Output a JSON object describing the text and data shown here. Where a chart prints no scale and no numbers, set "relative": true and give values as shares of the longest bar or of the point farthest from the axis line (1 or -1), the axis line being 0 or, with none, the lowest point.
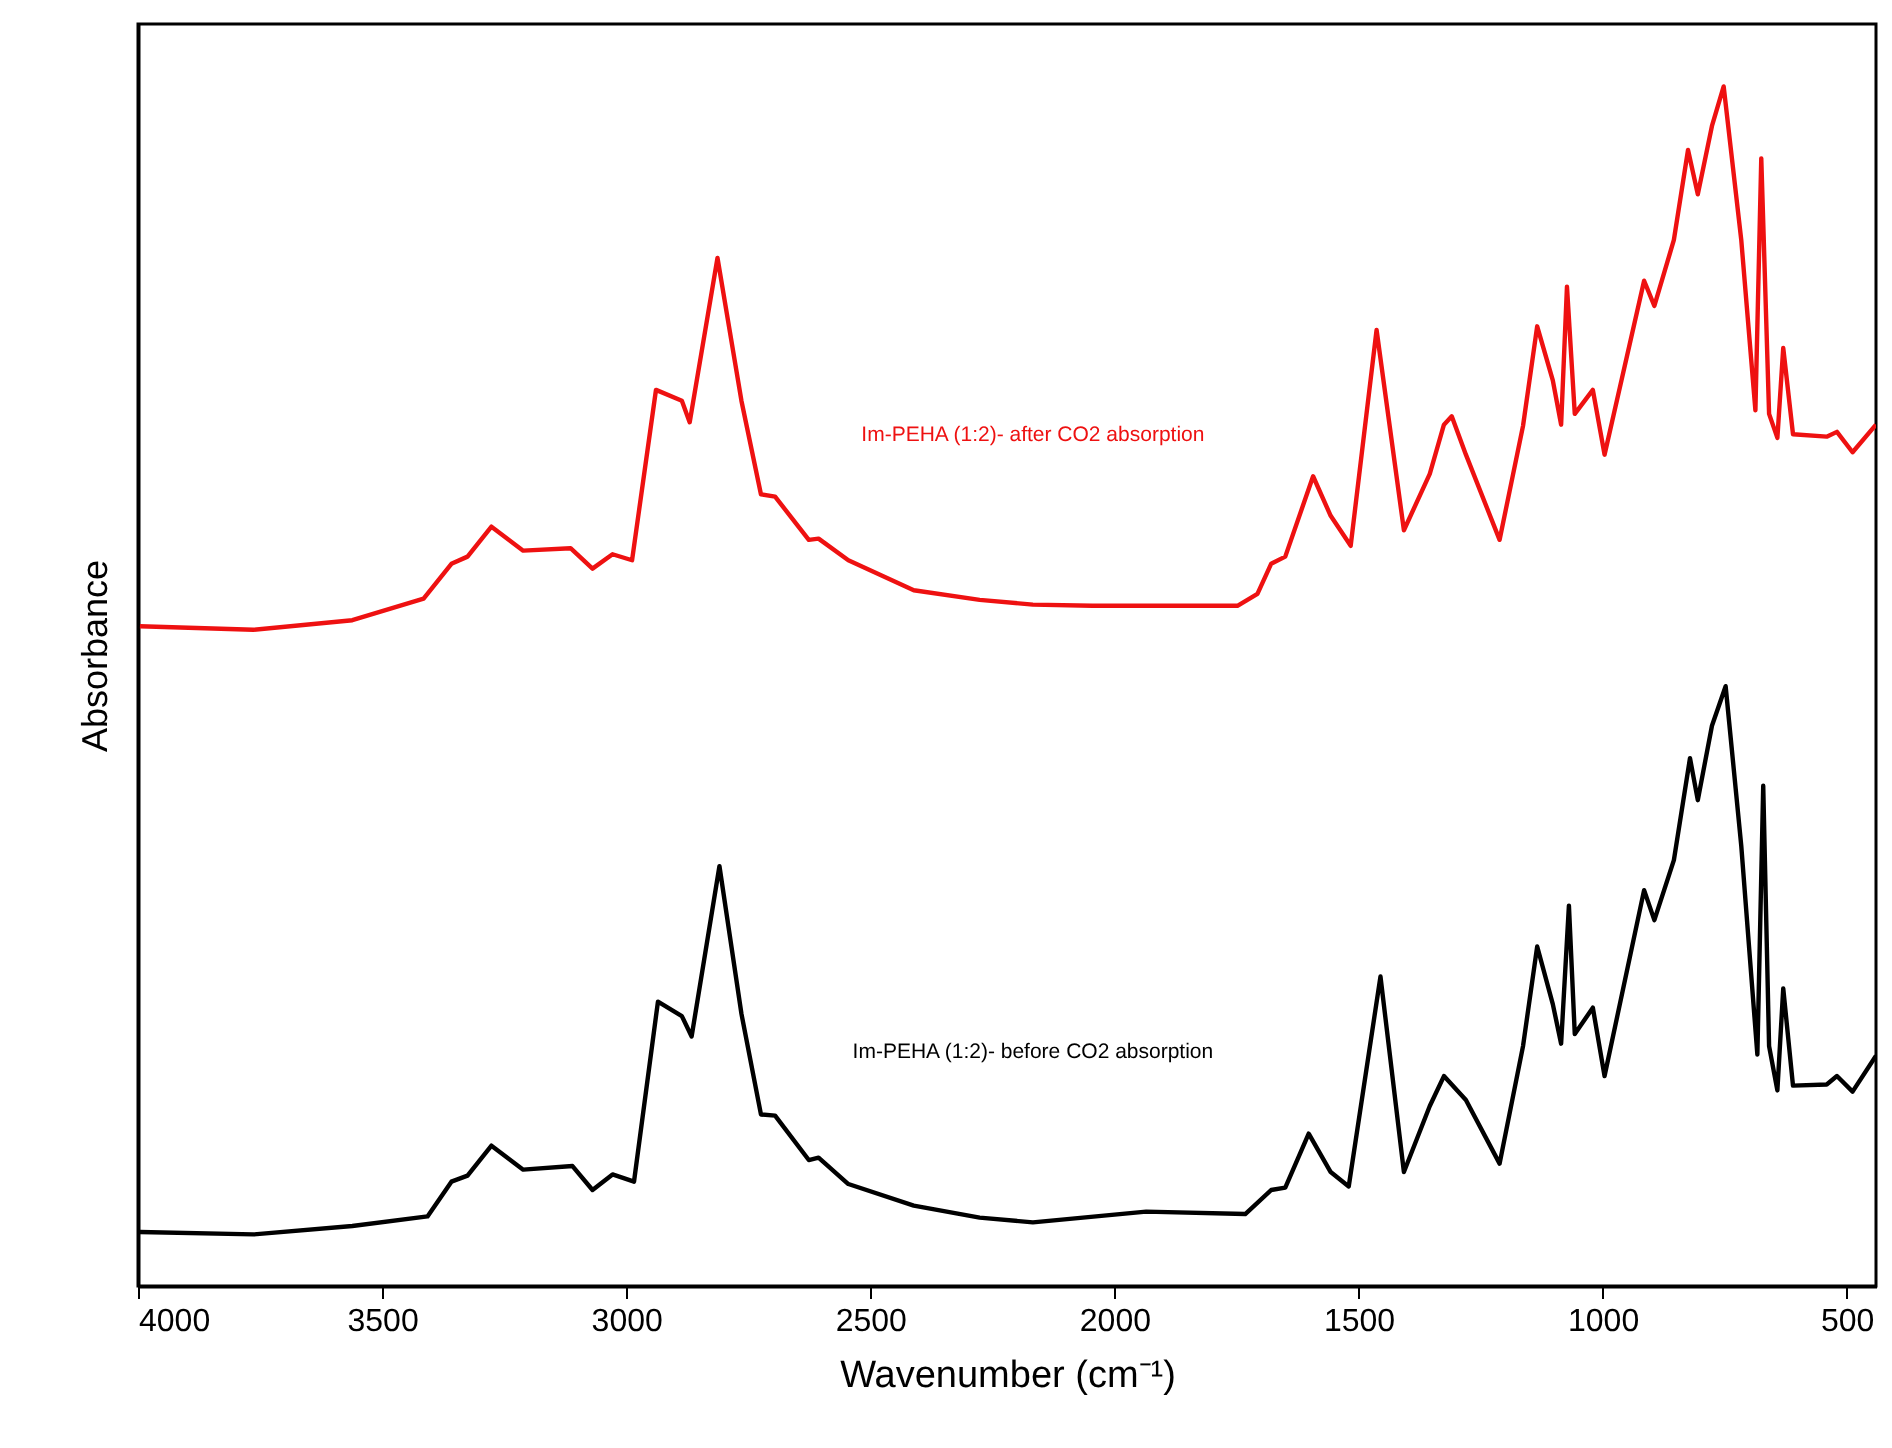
{
  "chart_data": {
    "type": "line",
    "relative": true,
    "xlabel": "Wavenumber (cm⁻¹)",
    "ylabel": "Absorbance",
    "xlim": [
      4000,
      440
    ],
    "xticks": [
      4000,
      3500,
      3000,
      2500,
      2000,
      1500,
      1000,
      500
    ],
    "line_style": "solid",
    "marker": "none",
    "series": [
      {
        "name": "Im-PEHA (1:2)- after CO2 absorption",
        "color": "#ee1111",
        "x": [
          3996,
          3764,
          3561,
          3415,
          3358,
          3325,
          3276,
          3211,
          3114,
          3069,
          3028,
          2988,
          2939,
          2886,
          2870,
          2813,
          2764,
          2724,
          2695,
          2626,
          2606,
          2545,
          2411,
          2276,
          2167,
          2045,
          1748,
          1707,
          1679,
          1650,
          1593,
          1557,
          1516,
          1463,
          1407,
          1354,
          1325,
          1309,
          1280,
          1211,
          1163,
          1134,
          1102,
          1085,
          1073,
          1057,
          1020,
          996,
          915,
          894,
          854,
          825,
          805,
          776,
          752,
          716,
          687,
          675,
          659,
          642,
          630,
          610,
          541,
          520,
          488,
          440
        ],
        "values": [
          0.55,
          0.547,
          0.555,
          0.573,
          0.602,
          0.608,
          0.633,
          0.613,
          0.615,
          0.598,
          0.61,
          0.605,
          0.747,
          0.738,
          0.72,
          0.857,
          0.738,
          0.66,
          0.658,
          0.622,
          0.623,
          0.605,
          0.58,
          0.572,
          0.568,
          0.567,
          0.567,
          0.577,
          0.602,
          0.608,
          0.675,
          0.642,
          0.617,
          0.797,
          0.63,
          0.677,
          0.718,
          0.725,
          0.693,
          0.622,
          0.717,
          0.8,
          0.755,
          0.718,
          0.833,
          0.727,
          0.747,
          0.693,
          0.838,
          0.817,
          0.872,
          0.947,
          0.91,
          0.967,
          1.0,
          0.872,
          0.73,
          0.94,
          0.727,
          0.707,
          0.782,
          0.71,
          0.708,
          0.712,
          0.695,
          0.718
        ]
      },
      {
        "name": "Im-PEHA (1:2)- before CO2 absorption",
        "color": "#000000",
        "x": [
          3996,
          3764,
          3561,
          3407,
          3358,
          3325,
          3276,
          3211,
          3110,
          3069,
          3028,
          2984,
          2935,
          2886,
          2866,
          2809,
          2764,
          2724,
          2695,
          2626,
          2606,
          2545,
          2411,
          2276,
          2167,
          1935,
          1732,
          1679,
          1650,
          1602,
          1557,
          1520,
          1455,
          1407,
          1354,
          1325,
          1280,
          1211,
          1163,
          1134,
          1102,
          1085,
          1069,
          1057,
          1020,
          996,
          915,
          894,
          854,
          821,
          805,
          776,
          748,
          716,
          683,
          671,
          659,
          642,
          630,
          610,
          541,
          520,
          488,
          440
        ],
        "values": [
          0.045,
          0.043,
          0.05,
          0.058,
          0.087,
          0.092,
          0.117,
          0.097,
          0.1,
          0.08,
          0.093,
          0.087,
          0.237,
          0.225,
          0.208,
          0.35,
          0.227,
          0.143,
          0.142,
          0.105,
          0.107,
          0.085,
          0.067,
          0.057,
          0.053,
          0.062,
          0.06,
          0.08,
          0.082,
          0.127,
          0.095,
          0.083,
          0.258,
          0.095,
          0.15,
          0.175,
          0.155,
          0.102,
          0.2,
          0.283,
          0.235,
          0.202,
          0.317,
          0.21,
          0.232,
          0.175,
          0.33,
          0.305,
          0.355,
          0.44,
          0.405,
          0.467,
          0.5,
          0.367,
          0.193,
          0.417,
          0.2,
          0.163,
          0.248,
          0.167,
          0.168,
          0.175,
          0.162,
          0.192
        ]
      }
    ]
  }
}
